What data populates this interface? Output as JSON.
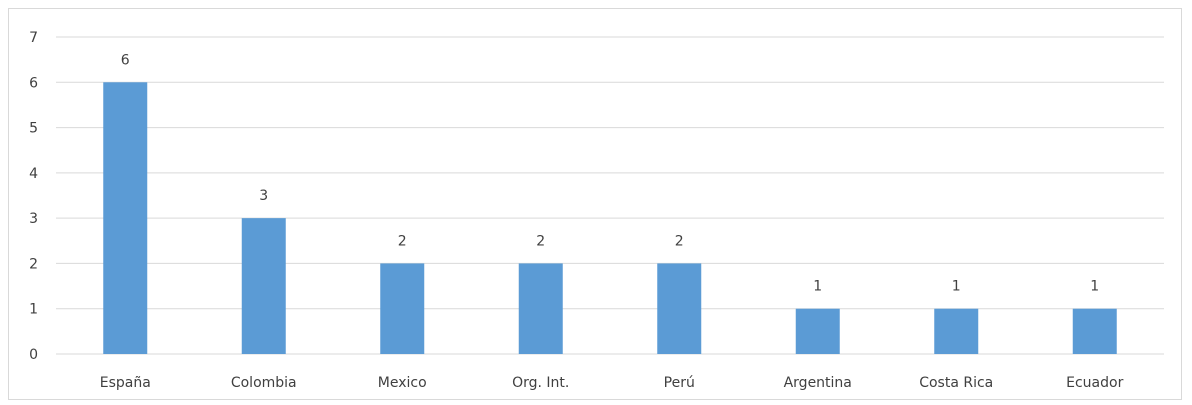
{
  "chart_data": {
    "type": "bar",
    "title": "",
    "xlabel": "",
    "ylabel": "",
    "categories": [
      "España",
      "Colombia",
      "Mexico",
      "Org. Int.",
      "Perú",
      "Argentina",
      "Costa Rica",
      "Ecuador"
    ],
    "values": [
      6,
      3,
      2,
      2,
      2,
      1,
      1,
      1
    ],
    "ylim": [
      0,
      7
    ],
    "yticks": [
      "0",
      "1",
      "2",
      "3",
      "4",
      "5",
      "6",
      "7"
    ],
    "grid": true,
    "legend": "none",
    "bar_color": "#5b9bd5",
    "grid_color": "#d9d9d9"
  }
}
